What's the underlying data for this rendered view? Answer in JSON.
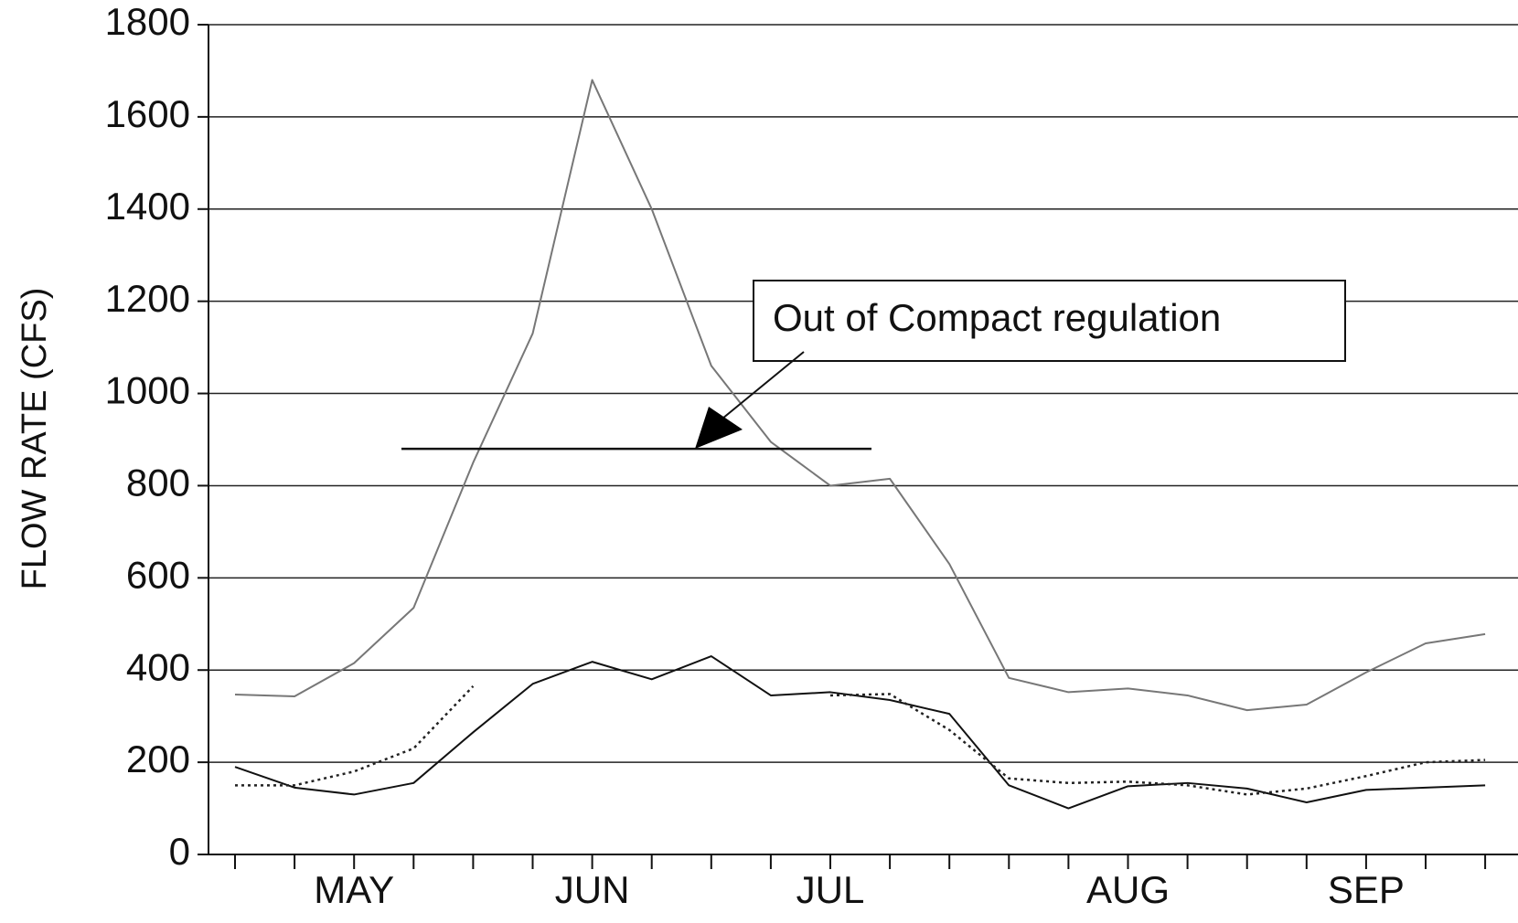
{
  "chart_data": {
    "type": "line",
    "y_label": "FLOW RATE (CFS)",
    "categories": [
      null,
      null,
      "MAY",
      null,
      null,
      null,
      "JUN",
      null,
      null,
      null,
      "JUL",
      null,
      null,
      null,
      null,
      "AUG",
      null,
      null,
      null,
      "SEP",
      null,
      null
    ],
    "series": [
      {
        "color": "#777777",
        "style": "solid",
        "values": [
          347,
          343,
          415,
          535,
          850,
          1130,
          1680,
          1400,
          1060,
          895,
          800,
          815,
          630,
          383,
          352,
          360,
          345,
          313,
          325,
          395,
          458,
          478
        ]
      },
      {
        "color": "#111111",
        "style": "solid",
        "values": [
          190,
          145,
          130,
          155,
          265,
          370,
          418,
          380,
          430,
          345,
          352,
          335,
          305,
          150,
          100,
          148,
          155,
          143,
          113,
          140,
          145,
          150
        ]
      },
      {
        "color": "#222222",
        "style": "dotted",
        "values": [
          150,
          150,
          180,
          230,
          365,
          null,
          null,
          null,
          null,
          null,
          345,
          348,
          270,
          165,
          155,
          158,
          150,
          130,
          143,
          170,
          200,
          205
        ]
      }
    ],
    "reference_line": 880,
    "annotation": "Out of Compact regulation",
    "ylim": [
      0,
      1800
    ],
    "yticks": [
      0,
      200,
      400,
      600,
      800,
      1000,
      1200,
      1400,
      1600,
      1800
    ],
    "grid": true
  }
}
